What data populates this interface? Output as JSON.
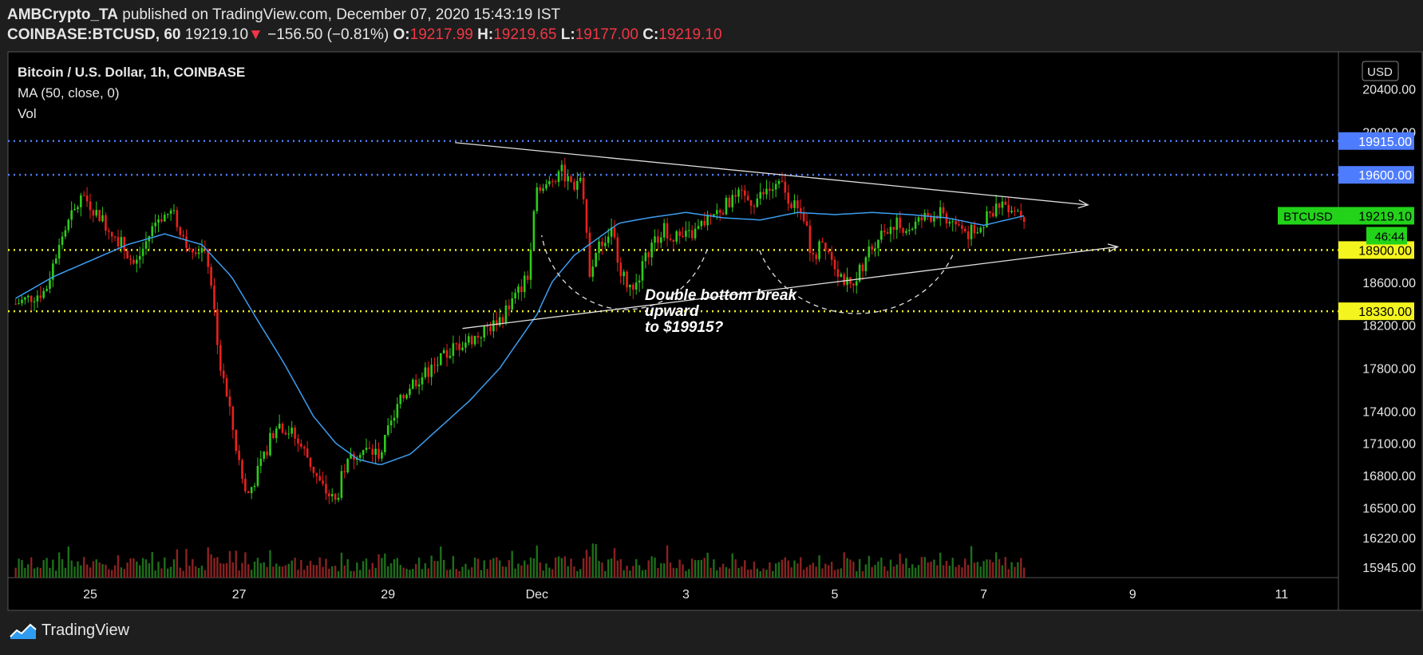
{
  "header": {
    "publisher": "AMBCrypto_TA",
    "published_text": "published on TradingView.com, December 07, 2020 15:43:19 IST",
    "symbol": "COINBASE:BTCUSD, 60",
    "last": "19219.10",
    "change": "−156.50 (−0.81%)",
    "o_label": "O:",
    "o": "19217.99",
    "h_label": "H:",
    "h": "19219.65",
    "l_label": "L:",
    "l": "19177.00",
    "c_label": "C:",
    "c": "19219.10"
  },
  "legend": {
    "title": "Bitcoin / U.S. Dollar, 1h, COINBASE",
    "ma": "MA (50, close, 0)",
    "vol": "Vol"
  },
  "currency": "USD",
  "annotation": [
    "Double bottom break",
    "upward",
    "to $19915?"
  ],
  "footer": {
    "brand": "TradingView"
  },
  "colors": {
    "bg": "#000000",
    "up": "#2ecc1a",
    "down": "#e8211d",
    "ma": "#3d9df0",
    "resistance": "#4d7cfe",
    "support": "#f4f41e",
    "price_tag": "#22d31a"
  },
  "chart_data": {
    "type": "candlestick",
    "title": "Bitcoin / U.S. Dollar, 1h, COINBASE",
    "ylim": [
      15850,
      20500
    ],
    "xlim": [
      24.0,
      12.4
    ],
    "y_ticks": [
      "20400.00",
      "20000.00",
      "19915.00",
      "19600.00",
      "19219.10",
      "18900.00",
      "18600.00",
      "18330.00",
      "18200.00",
      "17800.00",
      "17400.00",
      "17100.00",
      "16800.00",
      "16500.00",
      "16220.00",
      "15945.00"
    ],
    "x_ticks": [
      {
        "label": "25",
        "x": 25
      },
      {
        "label": "27",
        "x": 27
      },
      {
        "label": "29",
        "x": 29
      },
      {
        "label": "Dec",
        "x": 31
      },
      {
        "label": "3",
        "x": 33
      },
      {
        "label": "5",
        "x": 35
      },
      {
        "label": "7",
        "x": 37
      },
      {
        "label": "9",
        "x": 39
      },
      {
        "label": "11",
        "x": 41
      }
    ],
    "horizontal_levels": [
      {
        "label": "19915.00",
        "value": 19915,
        "color": "#4d7cfe"
      },
      {
        "label": "19600.00",
        "value": 19600,
        "color": "#4d7cfe"
      },
      {
        "label": "18900.00",
        "value": 18900,
        "color": "#f4f41e"
      },
      {
        "label": "18330.00",
        "value": 18330,
        "color": "#f4f41e"
      }
    ],
    "last_price": {
      "symbol": "BTCUSD",
      "value": "19219.10",
      "countdown": "46:44"
    },
    "trendlines": [
      {
        "from": [
          29.9,
          19900
        ],
        "to": [
          38.4,
          19320
        ]
      },
      {
        "from": [
          30.0,
          18170
        ],
        "to": [
          38.8,
          18930
        ]
      }
    ],
    "price_path": [
      [
        24.0,
        18400
      ],
      [
        24.4,
        18520
      ],
      [
        24.6,
        19000
      ],
      [
        24.9,
        19410
      ],
      [
        25.2,
        19150
      ],
      [
        25.4,
        18980
      ],
      [
        25.6,
        18750
      ],
      [
        25.9,
        19200
      ],
      [
        26.1,
        19250
      ],
      [
        26.3,
        18970
      ],
      [
        26.5,
        18900
      ],
      [
        26.6,
        18760
      ],
      [
        26.75,
        17800
      ],
      [
        26.9,
        17300
      ],
      [
        27.0,
        16900
      ],
      [
        27.1,
        16600
      ],
      [
        27.3,
        16900
      ],
      [
        27.5,
        17300
      ],
      [
        27.7,
        17200
      ],
      [
        27.9,
        17000
      ],
      [
        28.1,
        16700
      ],
      [
        28.3,
        16550
      ],
      [
        28.4,
        16850
      ],
      [
        28.6,
        17050
      ],
      [
        28.9,
        17000
      ],
      [
        29.1,
        17400
      ],
      [
        29.3,
        17650
      ],
      [
        29.6,
        17800
      ],
      [
        29.9,
        18000
      ],
      [
        30.2,
        18100
      ],
      [
        30.5,
        18250
      ],
      [
        30.7,
        18450
      ],
      [
        30.9,
        18700
      ],
      [
        31.0,
        19550
      ],
      [
        31.1,
        19450
      ],
      [
        31.3,
        19650
      ],
      [
        31.5,
        19500
      ],
      [
        31.6,
        19600
      ],
      [
        31.7,
        18700
      ],
      [
        31.8,
        18900
      ],
      [
        32.0,
        19100
      ],
      [
        32.15,
        18650
      ],
      [
        32.3,
        18500
      ],
      [
        32.5,
        18900
      ],
      [
        32.7,
        19100
      ],
      [
        32.9,
        19000
      ],
      [
        33.1,
        19050
      ],
      [
        33.3,
        19200
      ],
      [
        33.5,
        19300
      ],
      [
        33.7,
        19400
      ],
      [
        33.9,
        19350
      ],
      [
        34.1,
        19450
      ],
      [
        34.3,
        19500
      ],
      [
        34.45,
        19300
      ],
      [
        34.6,
        19200
      ],
      [
        34.7,
        18800
      ],
      [
        34.85,
        19000
      ],
      [
        35.05,
        18700
      ],
      [
        35.2,
        18550
      ],
      [
        35.4,
        18800
      ],
      [
        35.6,
        19050
      ],
      [
        35.8,
        19150
      ],
      [
        36.0,
        19100
      ],
      [
        36.2,
        19200
      ],
      [
        36.4,
        19250
      ],
      [
        36.6,
        19150
      ],
      [
        36.8,
        19050
      ],
      [
        37.0,
        19150
      ],
      [
        37.2,
        19350
      ],
      [
        37.4,
        19300
      ],
      [
        37.55,
        19219
      ]
    ],
    "ma_path": [
      [
        24.0,
        18450
      ],
      [
        24.5,
        18650
      ],
      [
        25.0,
        18800
      ],
      [
        25.5,
        18950
      ],
      [
        26.0,
        19050
      ],
      [
        26.5,
        18950
      ],
      [
        26.9,
        18650
      ],
      [
        27.2,
        18300
      ],
      [
        27.6,
        17850
      ],
      [
        28.0,
        17350
      ],
      [
        28.3,
        17100
      ],
      [
        28.6,
        16950
      ],
      [
        28.9,
        16900
      ],
      [
        29.3,
        17000
      ],
      [
        29.7,
        17250
      ],
      [
        30.1,
        17500
      ],
      [
        30.5,
        17800
      ],
      [
        30.8,
        18100
      ],
      [
        31.0,
        18300
      ],
      [
        31.2,
        18600
      ],
      [
        31.5,
        18850
      ],
      [
        31.8,
        19000
      ],
      [
        32.1,
        19150
      ],
      [
        32.5,
        19200
      ],
      [
        33.0,
        19250
      ],
      [
        33.5,
        19200
      ],
      [
        34.0,
        19180
      ],
      [
        34.5,
        19250
      ],
      [
        35.0,
        19230
      ],
      [
        35.5,
        19250
      ],
      [
        36.0,
        19230
      ],
      [
        36.5,
        19200
      ],
      [
        37.0,
        19130
      ],
      [
        37.55,
        19220
      ]
    ]
  }
}
